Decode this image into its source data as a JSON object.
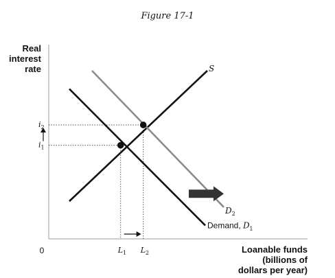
{
  "chart_data": {
    "type": "line",
    "title": "Figure 17-1",
    "ylabel": [
      "Real",
      "interest",
      "rate"
    ],
    "xlabel": [
      "Loanable funds",
      "(billions of",
      "dollars per year)"
    ],
    "origin_label": "0",
    "xlim": [
      0,
      10
    ],
    "ylim": [
      0,
      10
    ],
    "y_ticks": [
      {
        "base": "i",
        "sub": "2",
        "value": 5.93
      },
      {
        "base": "i",
        "sub": "1",
        "value": 4.87
      }
    ],
    "x_ticks": [
      {
        "base": "L",
        "sub": "1",
        "value": 3.49
      },
      {
        "base": "L",
        "sub": "2",
        "value": 4.59
      }
    ],
    "series": [
      {
        "name": "S",
        "color": "#111111",
        "points": [
          [
            1.0,
            1.96
          ],
          [
            7.7,
            8.75
          ]
        ]
      },
      {
        "name": "Demand, D₁",
        "color": "#111111",
        "points": [
          [
            1.0,
            7.8
          ],
          [
            7.6,
            0.7
          ]
        ]
      },
      {
        "name": "D₂",
        "color": "#8c8c8c",
        "points": [
          [
            2.1,
            8.75
          ],
          [
            8.5,
            1.65
          ]
        ]
      }
    ],
    "equilibria": [
      {
        "x": 3.49,
        "y": 4.87
      },
      {
        "x": 4.59,
        "y": 5.93
      }
    ],
    "curve_labels": {
      "s": "S",
      "d2_base": "D",
      "d2_sub": "2",
      "d1_text": "Demand, ",
      "d1_base": "D",
      "d1_sub": "1"
    },
    "shift_arrow": {
      "from": [
        6.8,
        2.35
      ],
      "to": [
        8.5,
        2.35
      ],
      "color": "#333333"
    },
    "grid": false
  }
}
